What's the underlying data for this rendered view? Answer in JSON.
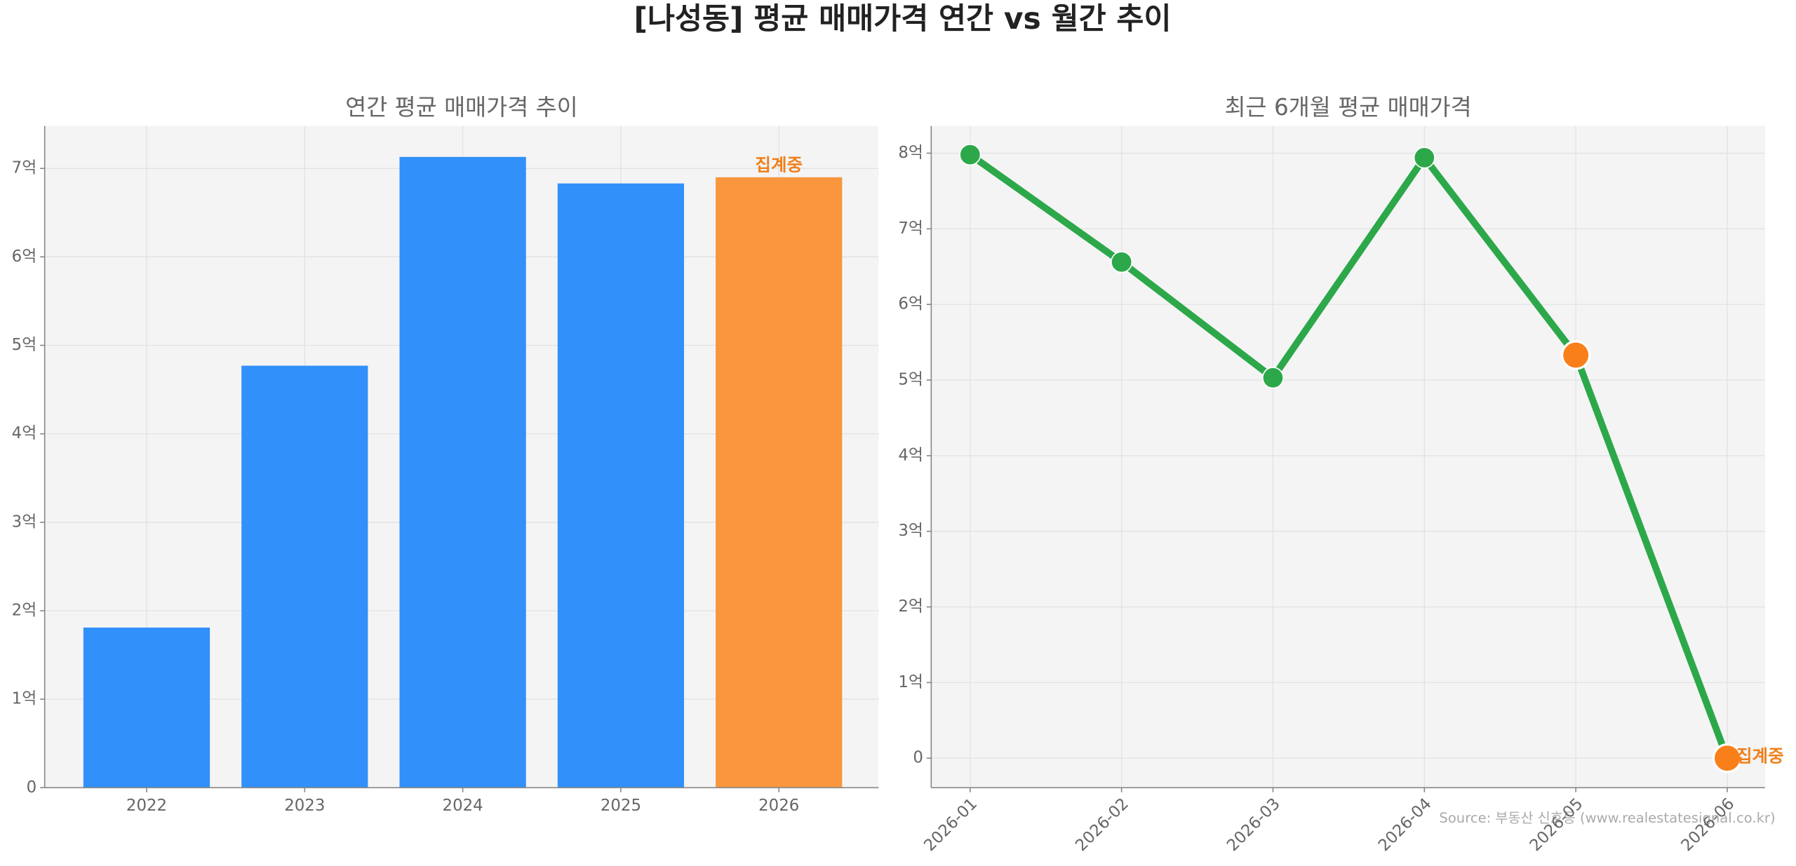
{
  "title": "[나성동] 평균 매매가격 연간 vs 월간 추이",
  "source": "Source: 부동산 신호등 (www.realestatesignal.co.kr)",
  "chart_data": [
    {
      "type": "bar",
      "title": "연간 평균 매매가격 추이",
      "categories": [
        "2022",
        "2023",
        "2024",
        "2025",
        "2026"
      ],
      "values": [
        1.81,
        4.77,
        7.13,
        6.83,
        6.9
      ],
      "colors": [
        "#3190f9",
        "#3190f9",
        "#3190f9",
        "#3190f9",
        "#f9963e"
      ],
      "ylim": [
        0,
        7.48
      ],
      "yticks": [
        0,
        {
          "value": 1,
          "label": "1억"
        },
        {
          "value": 2,
          "label": "2억"
        },
        {
          "value": 3,
          "label": "3억"
        },
        {
          "value": 4,
          "label": "4억"
        },
        {
          "value": 5,
          "label": "5억"
        },
        {
          "value": 6,
          "label": "6억"
        },
        {
          "value": 7,
          "label": "7억"
        }
      ],
      "grid": true,
      "annotations": [
        {
          "index": 4,
          "text": "집계중",
          "color": "#f07f1a"
        }
      ]
    },
    {
      "type": "line",
      "title": "최근 6개월 평균 매매가격",
      "categories": [
        "2026-01",
        "2026-02",
        "2026-03",
        "2026-04",
        "2026-05",
        "2026-06"
      ],
      "values": [
        7.98,
        6.56,
        5.03,
        7.94,
        5.33,
        0
      ],
      "color": "#2ca84a",
      "marker_colors": [
        "#2ca84a",
        "#2ca84a",
        "#2ca84a",
        "#2ca84a",
        "#f97f1a",
        "#f97f1a"
      ],
      "ylim": [
        -0.39,
        8.36
      ],
      "yticks": [
        0,
        {
          "value": 1,
          "label": "1억"
        },
        {
          "value": 2,
          "label": "2억"
        },
        {
          "value": 3,
          "label": "3억"
        },
        {
          "value": 4,
          "label": "4억"
        },
        {
          "value": 5,
          "label": "5억"
        },
        {
          "value": 6,
          "label": "6억"
        },
        {
          "value": 7,
          "label": "7억"
        },
        {
          "value": 8,
          "label": "8억"
        }
      ],
      "grid": true,
      "annotations": [
        {
          "index": 5,
          "text": "집계중",
          "color": "#f07f1a"
        }
      ]
    }
  ]
}
